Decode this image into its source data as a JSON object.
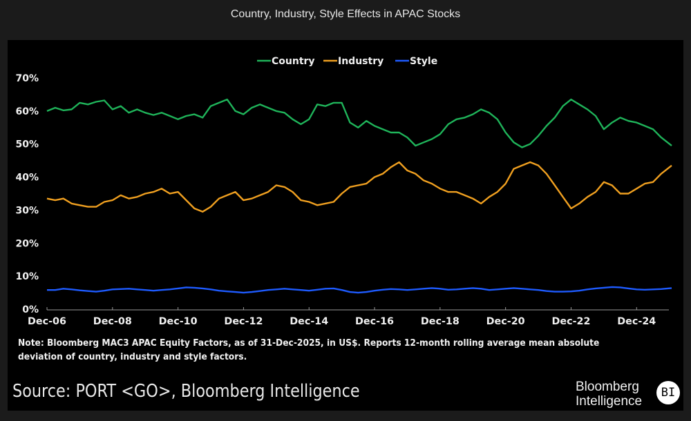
{
  "header": {
    "title": "Country, Industry, Style Effects in APAC Stocks"
  },
  "note": "Note: Bloomberg MAC3 APAC Equity Factors, as of 31-Dec-2025, in US$. Reports 12-month rolling average mean absolute deviation of country, industry and style factors.",
  "source": "Source: PORT <GO>, Bloomberg Intelligence",
  "brand": {
    "line1": "Bloomberg",
    "line2": "Intelligence",
    "logo": "BI"
  },
  "chart_data": {
    "type": "line",
    "title": "Country, Industry, Style Effects in APAC Stocks",
    "xlabel": "",
    "ylabel": "",
    "ylim": [
      0,
      70
    ],
    "y_ticks": [
      "0%",
      "10%",
      "20%",
      "30%",
      "40%",
      "50%",
      "60%",
      "70%"
    ],
    "y_tick_values": [
      0,
      10,
      20,
      30,
      40,
      50,
      60,
      70
    ],
    "x_ticks": [
      "Dec-06",
      "Dec-08",
      "Dec-10",
      "Dec-12",
      "Dec-14",
      "Dec-16",
      "Dec-18",
      "Dec-20",
      "Dec-22",
      "Dec-24"
    ],
    "x_tick_values": [
      2006.92,
      2008.92,
      2010.92,
      2012.92,
      2014.92,
      2016.92,
      2018.92,
      2020.92,
      2022.92,
      2024.92
    ],
    "xlim": [
      2006.92,
      2025.99
    ],
    "grid": false,
    "legend": {
      "position": "top-center",
      "entries": [
        "Country",
        "Industry",
        "Style"
      ]
    },
    "x": [
      2006.92,
      2007.17,
      2007.42,
      2007.67,
      2007.92,
      2008.17,
      2008.42,
      2008.67,
      2008.92,
      2009.17,
      2009.42,
      2009.67,
      2009.92,
      2010.17,
      2010.42,
      2010.67,
      2010.92,
      2011.17,
      2011.42,
      2011.67,
      2011.92,
      2012.17,
      2012.42,
      2012.67,
      2012.92,
      2013.17,
      2013.42,
      2013.67,
      2013.92,
      2014.17,
      2014.42,
      2014.67,
      2014.92,
      2015.17,
      2015.42,
      2015.67,
      2015.92,
      2016.17,
      2016.42,
      2016.67,
      2016.92,
      2017.17,
      2017.42,
      2017.67,
      2017.92,
      2018.17,
      2018.42,
      2018.67,
      2018.92,
      2019.17,
      2019.42,
      2019.67,
      2019.92,
      2020.17,
      2020.42,
      2020.67,
      2020.92,
      2021.17,
      2021.42,
      2021.67,
      2021.92,
      2022.17,
      2022.42,
      2022.67,
      2022.92,
      2023.17,
      2023.42,
      2023.67,
      2023.92,
      2024.17,
      2024.42,
      2024.67,
      2024.92,
      2025.17,
      2025.42,
      2025.67,
      2025.99
    ],
    "series": [
      {
        "name": "Country",
        "color": "#1fb45a",
        "values": [
          60.0,
          61.0,
          60.2,
          60.5,
          62.5,
          62.0,
          62.8,
          63.2,
          60.5,
          61.5,
          59.5,
          60.5,
          59.5,
          58.8,
          59.5,
          58.5,
          57.5,
          58.5,
          59.0,
          58.0,
          61.5,
          62.5,
          63.5,
          60.0,
          59.0,
          61.0,
          62.0,
          61.0,
          60.0,
          59.5,
          57.5,
          56.0,
          57.5,
          62.0,
          61.5,
          62.5,
          62.5,
          56.5,
          55.0,
          57.0,
          55.5,
          54.5,
          53.5,
          53.5,
          52.0,
          49.5,
          50.5,
          51.5,
          53.0,
          56.0,
          57.5,
          58.0,
          59.0,
          60.5,
          59.5,
          57.5,
          53.5,
          50.5,
          49.0,
          50.0,
          52.5,
          55.5,
          58.0,
          61.5,
          63.5,
          62.0,
          60.5,
          58.5,
          54.5,
          56.5,
          58.0,
          57.0,
          56.5,
          55.5,
          54.5,
          52.0,
          49.5
        ]
      },
      {
        "name": "Industry",
        "color": "#f0a020",
        "values": [
          33.5,
          33.0,
          33.5,
          32.0,
          31.5,
          31.0,
          31.0,
          32.5,
          33.0,
          34.5,
          33.5,
          34.0,
          35.0,
          35.5,
          36.5,
          35.0,
          35.5,
          33.0,
          30.5,
          29.5,
          31.0,
          33.5,
          34.5,
          35.5,
          33.0,
          33.5,
          34.5,
          35.5,
          37.5,
          37.0,
          35.5,
          33.0,
          32.5,
          31.5,
          32.0,
          32.5,
          35.0,
          37.0,
          37.5,
          38.0,
          40.0,
          41.0,
          43.0,
          44.5,
          42.0,
          41.0,
          39.0,
          38.0,
          36.5,
          35.5,
          35.5,
          34.5,
          33.5,
          32.0,
          34.0,
          35.5,
          38.0,
          42.5,
          43.5,
          44.5,
          43.5,
          41.0,
          37.5,
          34.0,
          30.5,
          32.0,
          34.0,
          35.5,
          38.5,
          37.5,
          35.0,
          35.0,
          36.5,
          38.0,
          38.5,
          41.0,
          43.5
        ]
      },
      {
        "name": "Style",
        "color": "#1e5bff",
        "values": [
          5.8,
          5.8,
          6.2,
          6.0,
          5.7,
          5.5,
          5.3,
          5.6,
          6.0,
          6.1,
          6.2,
          6.0,
          5.8,
          5.6,
          5.8,
          6.0,
          6.3,
          6.6,
          6.5,
          6.3,
          6.0,
          5.6,
          5.4,
          5.2,
          5.0,
          5.2,
          5.5,
          5.8,
          6.0,
          6.2,
          6.0,
          5.8,
          5.6,
          5.9,
          6.2,
          6.3,
          5.8,
          5.2,
          5.0,
          5.2,
          5.6,
          5.9,
          6.1,
          6.0,
          5.8,
          6.0,
          6.2,
          6.4,
          6.2,
          5.9,
          6.0,
          6.2,
          6.4,
          6.2,
          5.8,
          6.0,
          6.2,
          6.4,
          6.2,
          6.0,
          5.8,
          5.5,
          5.3,
          5.3,
          5.4,
          5.6,
          6.0,
          6.3,
          6.5,
          6.7,
          6.6,
          6.3,
          6.0,
          5.9,
          6.0,
          6.1,
          6.4
        ]
      }
    ]
  }
}
